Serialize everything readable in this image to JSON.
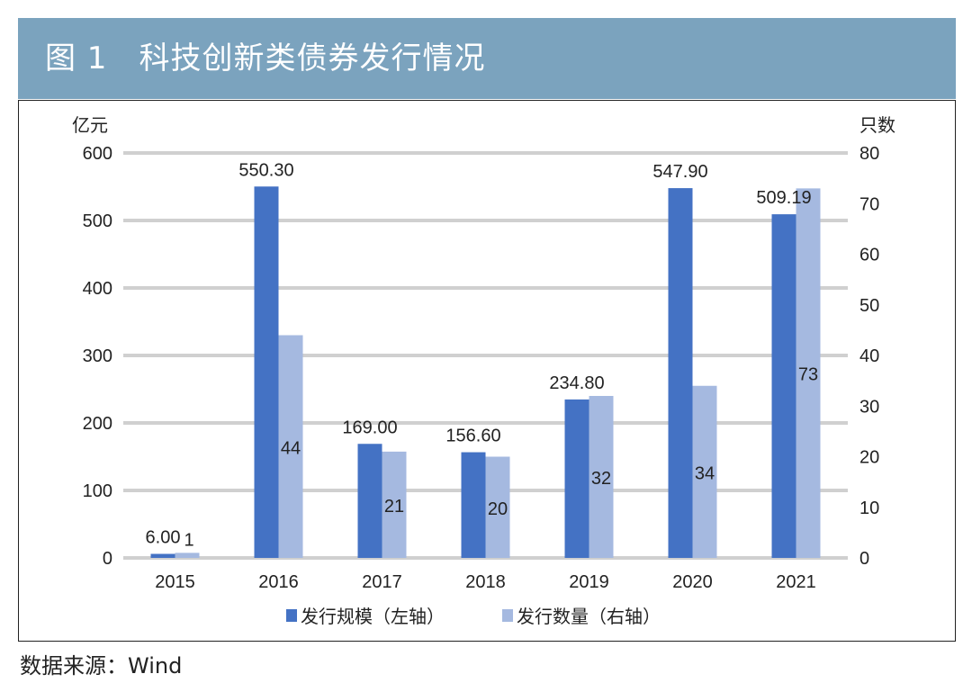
{
  "title": "图 1　科技创新类债券发行情况",
  "source": "数据来源：Wind",
  "chart_data": {
    "type": "bar",
    "categories": [
      "2015",
      "2016",
      "2017",
      "2018",
      "2019",
      "2020",
      "2021"
    ],
    "series": [
      {
        "name": "发行规模（左轴）",
        "axis": "left",
        "color": "#4472c4",
        "values": [
          6.0,
          550.3,
          169.0,
          156.6,
          234.8,
          547.9,
          509.19
        ],
        "labels": [
          "6.00",
          "550.30",
          "169.00",
          "156.60",
          "234.80",
          "547.90",
          "509.19"
        ]
      },
      {
        "name": "发行数量（右轴）",
        "axis": "right",
        "color": "#a5b9e0",
        "values": [
          1,
          44,
          21,
          20,
          32,
          34,
          73
        ],
        "labels": [
          "1",
          "44",
          "21",
          "20",
          "32",
          "34",
          "73"
        ]
      }
    ],
    "y_left": {
      "label": "亿元",
      "lim": [
        0,
        600
      ],
      "ticks": [
        "0",
        "100",
        "200",
        "300",
        "400",
        "500",
        "600"
      ]
    },
    "y_right": {
      "label": "只数",
      "lim": [
        0,
        80
      ],
      "ticks": [
        "0",
        "10",
        "20",
        "30",
        "40",
        "50",
        "60",
        "70",
        "80"
      ]
    },
    "grid": true,
    "legend": "bottom"
  }
}
